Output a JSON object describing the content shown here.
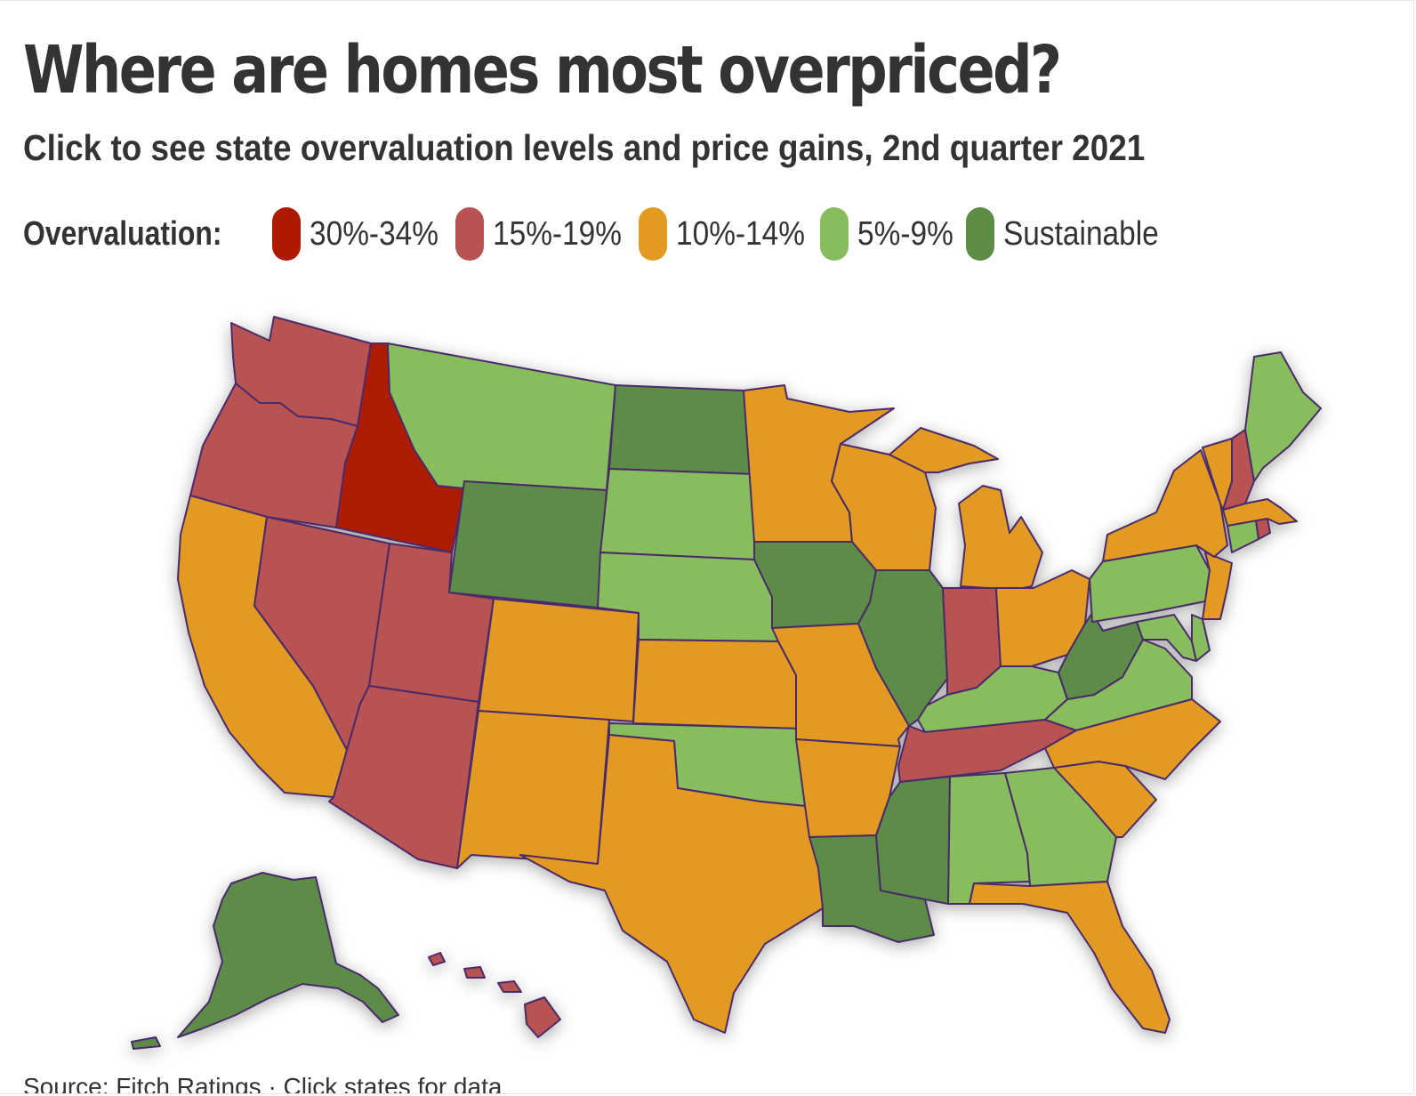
{
  "title": "Where are homes most overpriced?",
  "subtitle": "Click to see state overvaluation levels and price gains, 2nd quarter 2021",
  "legend": {
    "title": "Overvaluation:",
    "items": [
      {
        "key": "c30",
        "label": "30%-34%",
        "color": "#ad1a00"
      },
      {
        "key": "c15",
        "label": "15%-19%",
        "color": "#b75252"
      },
      {
        "key": "c10",
        "label": "10%-14%",
        "color": "#e29a20"
      },
      {
        "key": "c5",
        "label": "5%-9%",
        "color": "#87bd5c"
      },
      {
        "key": "cs",
        "label": "Sustainable",
        "color": "#5c8c46"
      }
    ]
  },
  "states": {
    "WA": "c15",
    "OR": "c15",
    "ID": "c30",
    "NV": "c15",
    "UT": "c15",
    "AZ": "c15",
    "CA": "c10",
    "MT": "c5",
    "WY": "cs",
    "CO": "c10",
    "NM": "c10",
    "ND": "cs",
    "SD": "c5",
    "NE": "c5",
    "KS": "c10",
    "OK": "c5",
    "TX": "c10",
    "MN": "c10",
    "IA": "cs",
    "MO": "c10",
    "AR": "c10",
    "LA": "cs",
    "WI": "c10",
    "IL": "cs",
    "MI": "c10",
    "IN": "c15",
    "OH": "c10",
    "KY": "c5",
    "TN": "c15",
    "MS": "cs",
    "AL": "c5",
    "GA": "c5",
    "FL": "c10",
    "SC": "c10",
    "NC": "c10",
    "VA": "c5",
    "WV": "cs",
    "MD": "c5",
    "DE": "c5",
    "PA": "c5",
    "NJ": "c10",
    "NY": "c10",
    "CT": "c5",
    "RI": "c15",
    "MA": "c10",
    "VT": "c10",
    "NH": "c15",
    "ME": "c5",
    "AK": "cs",
    "HI": "c15"
  },
  "source": "Source: Fitch Ratings · Click states for data"
}
